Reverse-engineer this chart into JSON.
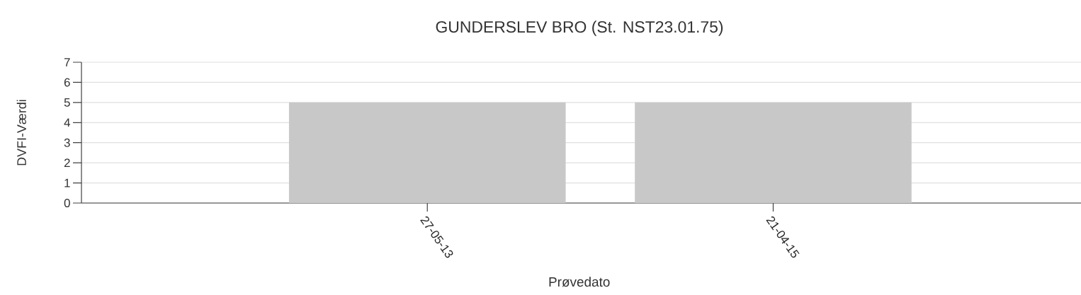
{
  "chart_data": {
    "type": "bar",
    "title": "GUNDERSLEV BRO (St. NST23.01.75)",
    "xlabel": "Prøvedato",
    "ylabel": "DVFI-Værdi",
    "categories": [
      "27-05-13",
      "21-04-15"
    ],
    "values": [
      5,
      5
    ],
    "color": "#c8c8c8",
    "ylim": [
      0,
      7
    ],
    "yticks": [
      0,
      1,
      2,
      3,
      4,
      5,
      6,
      7
    ],
    "grid": "y"
  }
}
